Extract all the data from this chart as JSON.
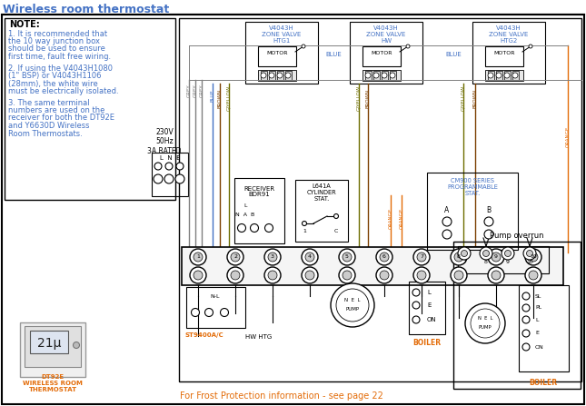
{
  "title": "Wireless room thermostat",
  "bg_color": "#ffffff",
  "blue_color": "#4472c4",
  "orange_color": "#e36c09",
  "grey_color": "#7f7f7f",
  "brown_color": "#7b3f00",
  "gyellow_color": "#6d6d00",
  "black_color": "#000000",
  "note_title": "NOTE:",
  "note_lines": [
    "1. It is recommended that",
    "the 10 way junction box",
    "should be used to ensure",
    "first time, fault free wiring.",
    "",
    "2. If using the V4043H1080",
    "(1\" BSP) or V4043H1106",
    "(28mm), the white wire",
    "must be electrically isolated.",
    "",
    "3. The same terminal",
    "numbers are used on the",
    "receiver for both the DT92E",
    "and Y6630D Wireless",
    "Room Thermostats."
  ],
  "valve1_label": "V4043H\nZONE VALVE\nHTG1",
  "valve2_label": "V4043H\nZONE VALVE\nHW",
  "valve3_label": "V4043H\nZONE VALVE\nHTG2",
  "supply_label": "230V\n50Hz\n3A RATED",
  "receiver_label": "RECEIVER\nBDR91",
  "cylinder_label": "L641A\nCYLINDER\nSTAT.",
  "cm900_label": "CM900 SERIES\nPROGRAMMABLE\nSTAT.",
  "pump_label": "N  E  L\nPUMP",
  "boiler_label": "BOILER",
  "st9400_label": "ST9400A/C",
  "hw_htg_label": "HW HTG",
  "frost_label": "For Frost Protection information - see page 22",
  "dt92e_label": "DT92E\nWIRELESS ROOM\nTHERMOSTAT",
  "pump_overrun_label": "Pump overrun"
}
